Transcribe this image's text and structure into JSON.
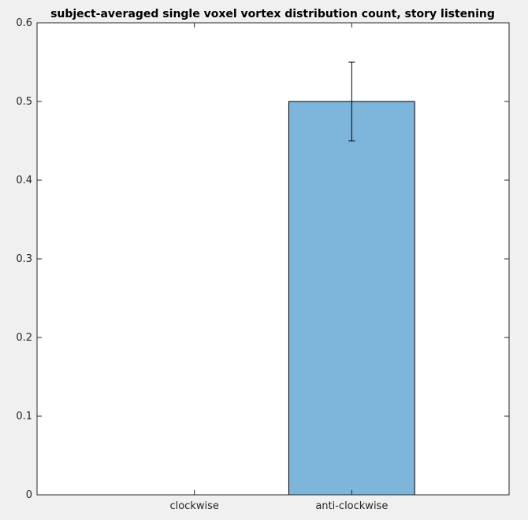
{
  "chart_data": {
    "type": "bar",
    "title": "subject-averaged single voxel vortex distribution count, story listening",
    "xlabel": "",
    "ylabel": "",
    "categories": [
      "clockwise",
      "anti-clockwise"
    ],
    "values": [
      0,
      0.5
    ],
    "error_bars": [
      {
        "category": "clockwise",
        "lower": 0,
        "upper": 0
      },
      {
        "category": "anti-clockwise",
        "lower": 0.45,
        "upper": 0.55
      }
    ],
    "ylim": [
      0,
      0.6
    ],
    "yticks": [
      "0",
      "0.1",
      "0.2",
      "0.3",
      "0.4",
      "0.5",
      "0.6"
    ],
    "xlim": [
      0,
      3
    ],
    "grid": false,
    "legend": "none",
    "colors": {
      "bar": "#7eb5da",
      "bar_edge": "#000000",
      "axes_background": "#ffffff",
      "figure_background": "#f0f0f0",
      "axis_line": "#262626"
    }
  }
}
